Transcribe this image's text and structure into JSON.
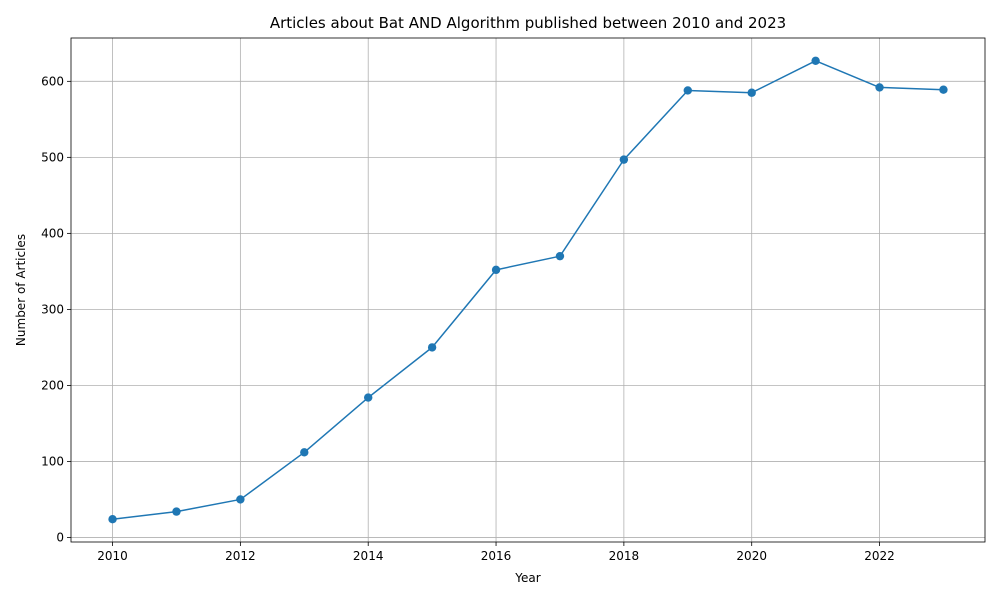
{
  "chart_data": {
    "type": "line",
    "title": "Articles about Bat AND Algorithm published between 2010 and 2023",
    "xlabel": "Year",
    "ylabel": "Number of Articles",
    "x": [
      2010,
      2011,
      2012,
      2013,
      2014,
      2015,
      2016,
      2017,
      2018,
      2019,
      2020,
      2021,
      2022,
      2023
    ],
    "series": [
      {
        "values": [
          24,
          34,
          50,
          112,
          184,
          250,
          352,
          370,
          497,
          588,
          585,
          627,
          592,
          589
        ],
        "color": "#1f77b4",
        "marker": "circle"
      }
    ],
    "xlim": [
      2009.35,
      2023.65
    ],
    "ylim": [
      -6,
      657
    ],
    "xticks": [
      "2010",
      "2012",
      "2014",
      "2016",
      "2018",
      "2020",
      "2022"
    ],
    "yticks": [
      "0",
      "100",
      "200",
      "300",
      "400",
      "500",
      "600"
    ],
    "grid": true,
    "legend": "none"
  }
}
